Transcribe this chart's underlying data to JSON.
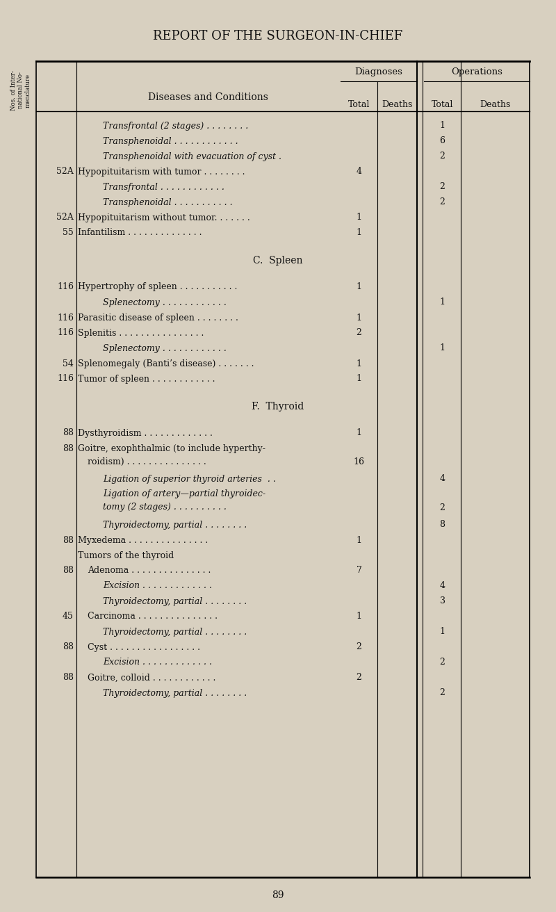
{
  "title": "REPORT OF THE SURGEON-IN-CHIEF",
  "page_number": "89",
  "bg_color": "#d8d0c0",
  "col_group1": "Diagnoses",
  "col_group2": "Operations",
  "rows": [
    {
      "num": "",
      "text": "Transfrontal (2 stages) . . . . . . . .",
      "italic": true,
      "indent": 2,
      "diag_total": "",
      "diag_deaths": "",
      "ops_total": "1",
      "ops_deaths": ""
    },
    {
      "num": "",
      "text": "Transphenoidal . . . . . . . . . . . .",
      "italic": true,
      "indent": 2,
      "diag_total": "",
      "diag_deaths": "",
      "ops_total": "6",
      "ops_deaths": ""
    },
    {
      "num": "",
      "text": "Transphenoidal with evacuation of cyst .",
      "italic": true,
      "indent": 2,
      "diag_total": "",
      "diag_deaths": "",
      "ops_total": "2",
      "ops_deaths": ""
    },
    {
      "num": "52A",
      "text": "Hypopituitarism with tumor . . . . . . . .",
      "italic": false,
      "indent": 0,
      "diag_total": "4",
      "diag_deaths": "",
      "ops_total": "",
      "ops_deaths": ""
    },
    {
      "num": "",
      "text": "Transfrontal . . . . . . . . . . . .",
      "italic": true,
      "indent": 2,
      "diag_total": "",
      "diag_deaths": "",
      "ops_total": "2",
      "ops_deaths": ""
    },
    {
      "num": "",
      "text": "Transphenoidal . . . . . . . . . . .",
      "italic": true,
      "indent": 2,
      "diag_total": "",
      "diag_deaths": "",
      "ops_total": "2",
      "ops_deaths": ""
    },
    {
      "num": "52A",
      "text": "Hypopituitarism without tumor. . . . . . .",
      "italic": false,
      "indent": 0,
      "diag_total": "1",
      "diag_deaths": "",
      "ops_total": "",
      "ops_deaths": ""
    },
    {
      "num": "55",
      "text": "Infantilism . . . . . . . . . . . . . .",
      "italic": false,
      "indent": 0,
      "diag_total": "1",
      "diag_deaths": "",
      "ops_total": "",
      "ops_deaths": ""
    },
    {
      "num": "",
      "text": "",
      "italic": false,
      "indent": 0,
      "diag_total": "",
      "diag_deaths": "",
      "ops_total": "",
      "ops_deaths": "",
      "spacer": true
    },
    {
      "num": "",
      "text": "C.  Spleen",
      "italic": false,
      "indent": 0,
      "diag_total": "",
      "diag_deaths": "",
      "ops_total": "",
      "ops_deaths": "",
      "section": true
    },
    {
      "num": "",
      "text": "",
      "italic": false,
      "indent": 0,
      "diag_total": "",
      "diag_deaths": "",
      "ops_total": "",
      "ops_deaths": "",
      "spacer": true
    },
    {
      "num": "116",
      "text": "Hypertrophy of spleen . . . . . . . . . . .",
      "italic": false,
      "indent": 0,
      "diag_total": "1",
      "diag_deaths": "",
      "ops_total": "",
      "ops_deaths": ""
    },
    {
      "num": "",
      "text": "Splenectomy . . . . . . . . . . . .",
      "italic": true,
      "indent": 2,
      "diag_total": "",
      "diag_deaths": "",
      "ops_total": "1",
      "ops_deaths": ""
    },
    {
      "num": "116",
      "text": "Parasitic disease of spleen . . . . . . . .",
      "italic": false,
      "indent": 0,
      "diag_total": "1",
      "diag_deaths": "",
      "ops_total": "",
      "ops_deaths": ""
    },
    {
      "num": "116",
      "text": "Splenitis . . . . . . . . . . . . . . . .",
      "italic": false,
      "indent": 0,
      "diag_total": "2",
      "diag_deaths": "",
      "ops_total": "",
      "ops_deaths": ""
    },
    {
      "num": "",
      "text": "Splenectomy . . . . . . . . . . . .",
      "italic": true,
      "indent": 2,
      "diag_total": "",
      "diag_deaths": "",
      "ops_total": "1",
      "ops_deaths": ""
    },
    {
      "num": "54",
      "text": "Splenomegaly (Banti’s disease) . . . . . . .",
      "italic": false,
      "indent": 0,
      "diag_total": "1",
      "diag_deaths": "",
      "ops_total": "",
      "ops_deaths": ""
    },
    {
      "num": "116",
      "text": "Tumor of spleen . . . . . . . . . . . .",
      "italic": false,
      "indent": 0,
      "diag_total": "1",
      "diag_deaths": "",
      "ops_total": "",
      "ops_deaths": ""
    },
    {
      "num": "",
      "text": "",
      "italic": false,
      "indent": 0,
      "diag_total": "",
      "diag_deaths": "",
      "ops_total": "",
      "ops_deaths": "",
      "spacer": true
    },
    {
      "num": "",
      "text": "F.  Thyroid",
      "italic": false,
      "indent": 0,
      "diag_total": "",
      "diag_deaths": "",
      "ops_total": "",
      "ops_deaths": "",
      "section": true
    },
    {
      "num": "",
      "text": "",
      "italic": false,
      "indent": 0,
      "diag_total": "",
      "diag_deaths": "",
      "ops_total": "",
      "ops_deaths": "",
      "spacer": true
    },
    {
      "num": "88",
      "text": "Dysthyroidism . . . . . . . . . . . . .",
      "italic": false,
      "indent": 0,
      "diag_total": "1",
      "diag_deaths": "",
      "ops_total": "",
      "ops_deaths": ""
    },
    {
      "num": "88",
      "text": "Goitre, exophthalmic (to include hyperthy-",
      "italic": false,
      "indent": 0,
      "diag_total": "",
      "diag_deaths": "",
      "ops_total": "",
      "ops_deaths": "",
      "multiline_top": true
    },
    {
      "num": "",
      "text": "roidism) . . . . . . . . . . . . . . .",
      "italic": false,
      "indent": 1,
      "diag_total": "16",
      "diag_deaths": "",
      "ops_total": "",
      "ops_deaths": "",
      "multiline_bot": true
    },
    {
      "num": "",
      "text": "Ligation of superior thyroid arteries  . .",
      "italic": true,
      "indent": 2,
      "diag_total": "",
      "diag_deaths": "",
      "ops_total": "4",
      "ops_deaths": ""
    },
    {
      "num": "",
      "text": "Ligation of artery—partial thyroidec-",
      "italic": true,
      "indent": 2,
      "diag_total": "",
      "diag_deaths": "",
      "ops_total": "",
      "ops_deaths": "",
      "multiline_top": true
    },
    {
      "num": "",
      "text": "tomy (2 stages) . . . . . . . . . .",
      "italic": true,
      "indent": 2,
      "diag_total": "",
      "diag_deaths": "",
      "ops_total": "2",
      "ops_deaths": "",
      "multiline_bot": true
    },
    {
      "num": "",
      "text": "Thyroidectomy, partial . . . . . . . .",
      "italic": true,
      "indent": 2,
      "diag_total": "",
      "diag_deaths": "",
      "ops_total": "8",
      "ops_deaths": ""
    },
    {
      "num": "88",
      "text": "Myxedema . . . . . . . . . . . . . . .",
      "italic": false,
      "indent": 0,
      "diag_total": "1",
      "diag_deaths": "",
      "ops_total": "",
      "ops_deaths": ""
    },
    {
      "num": "",
      "text": "Tumors of the thyroid",
      "italic": false,
      "indent": 0,
      "diag_total": "",
      "diag_deaths": "",
      "ops_total": "",
      "ops_deaths": "",
      "label": true
    },
    {
      "num": "88",
      "text": "Adenoma . . . . . . . . . . . . . . .",
      "italic": false,
      "indent": 1,
      "diag_total": "7",
      "diag_deaths": "",
      "ops_total": "",
      "ops_deaths": ""
    },
    {
      "num": "",
      "text": "Excision . . . . . . . . . . . . .",
      "italic": true,
      "indent": 2,
      "diag_total": "",
      "diag_deaths": "",
      "ops_total": "4",
      "ops_deaths": ""
    },
    {
      "num": "",
      "text": "Thyroidectomy, partial . . . . . . . .",
      "italic": true,
      "indent": 2,
      "diag_total": "",
      "diag_deaths": "",
      "ops_total": "3",
      "ops_deaths": ""
    },
    {
      "num": "45",
      "text": "Carcinoma . . . . . . . . . . . . . . .",
      "italic": false,
      "indent": 1,
      "diag_total": "1",
      "diag_deaths": "",
      "ops_total": "",
      "ops_deaths": ""
    },
    {
      "num": "",
      "text": "Thyroidectomy, partial . . . . . . . .",
      "italic": true,
      "indent": 2,
      "diag_total": "",
      "diag_deaths": "",
      "ops_total": "1",
      "ops_deaths": ""
    },
    {
      "num": "88",
      "text": "Cyst . . . . . . . . . . . . . . . . .",
      "italic": false,
      "indent": 1,
      "diag_total": "2",
      "diag_deaths": "",
      "ops_total": "",
      "ops_deaths": ""
    },
    {
      "num": "",
      "text": "Excision . . . . . . . . . . . . .",
      "italic": true,
      "indent": 2,
      "diag_total": "",
      "diag_deaths": "",
      "ops_total": "2",
      "ops_deaths": ""
    },
    {
      "num": "88",
      "text": "Goitre, colloid . . . . . . . . . . . .",
      "italic": false,
      "indent": 1,
      "diag_total": "2",
      "diag_deaths": "",
      "ops_total": "",
      "ops_deaths": ""
    },
    {
      "num": "",
      "text": "Thyroidectomy, partial . . . . . . . .",
      "italic": true,
      "indent": 2,
      "diag_total": "",
      "diag_deaths": "",
      "ops_total": "2",
      "ops_deaths": ""
    }
  ]
}
